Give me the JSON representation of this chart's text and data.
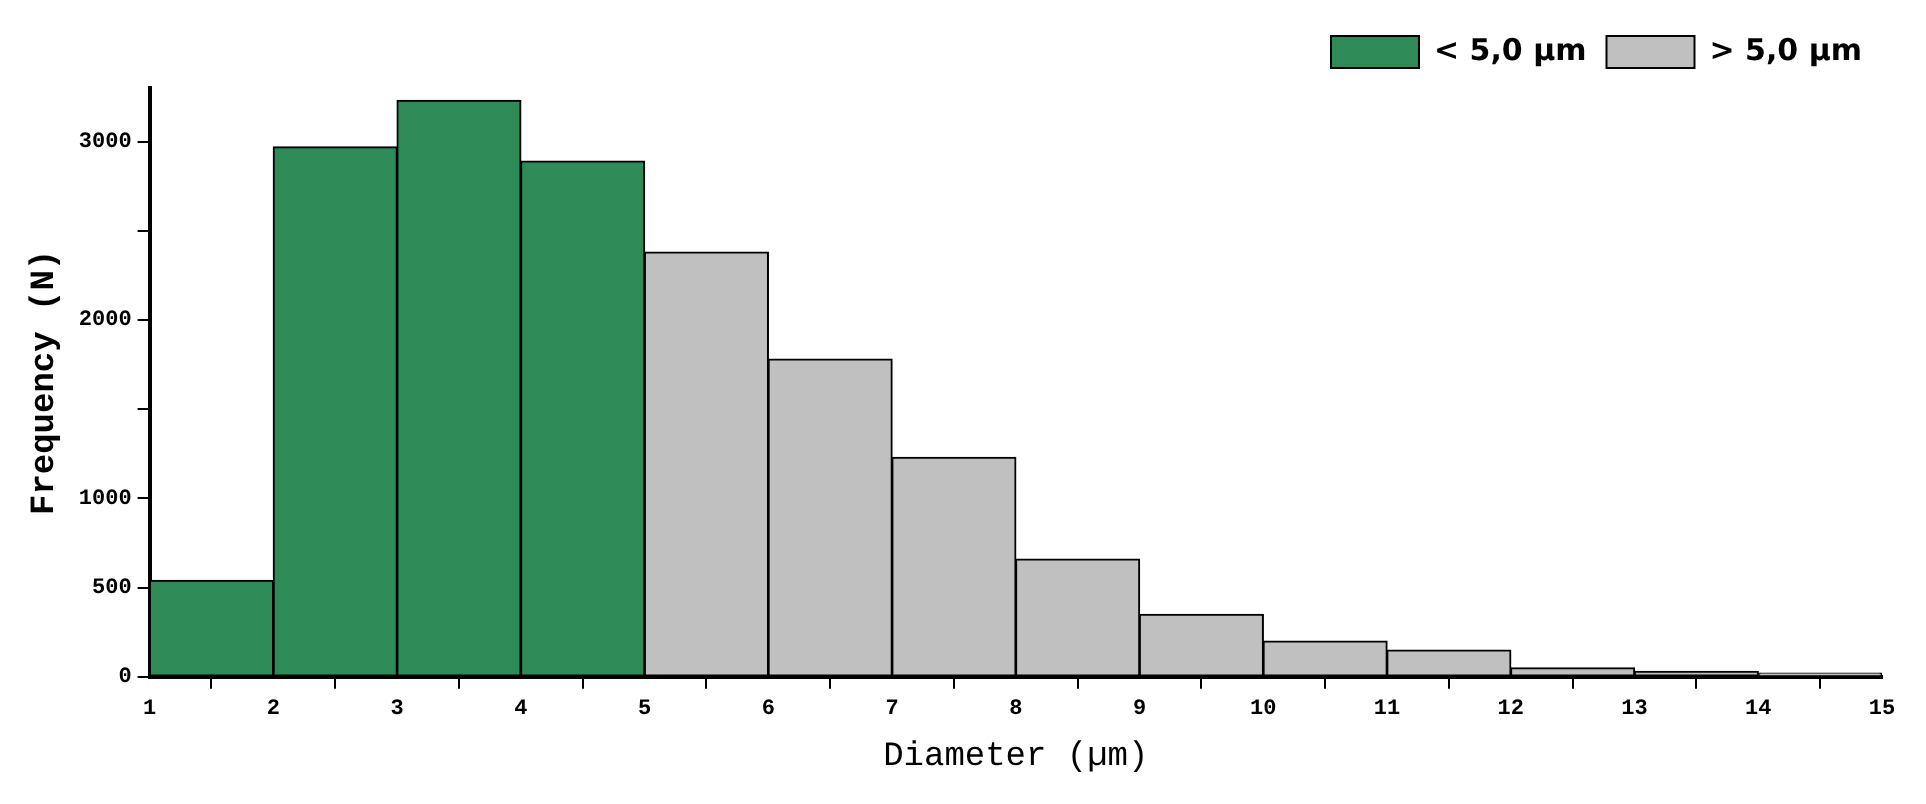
{
  "chart_data": {
    "type": "histogram",
    "xlabel": "Diameter (µm)",
    "ylabel": "Frequency (N)",
    "bins": [
      1,
      2,
      3,
      4,
      5,
      6,
      7,
      8,
      9,
      10,
      11,
      12,
      13,
      14,
      15
    ],
    "series": [
      {
        "name": "< 5,0 µm",
        "color": "#2e8b57",
        "values": [
          540,
          2970,
          3230,
          2890,
          null,
          null,
          null,
          null,
          null,
          null,
          null,
          null,
          null,
          null
        ]
      },
      {
        "name": "> 5,0 µm",
        "color": "#c0c0c0",
        "values": [
          null,
          null,
          null,
          null,
          2380,
          1780,
          1230,
          660,
          350,
          200,
          150,
          50,
          30,
          20
        ]
      }
    ],
    "xlim": [
      1,
      15
    ],
    "xticks": [
      1,
      2,
      3,
      4,
      5,
      6,
      7,
      8,
      9,
      10,
      11,
      12,
      13,
      14,
      15
    ],
    "ylim": [
      0,
      3300
    ],
    "yticks": [
      0,
      500,
      1000,
      {
        "value": 1500,
        "label": null
      },
      2000,
      {
        "value": 2500,
        "label": null
      },
      3000
    ],
    "grid": false,
    "legend": "top right"
  }
}
